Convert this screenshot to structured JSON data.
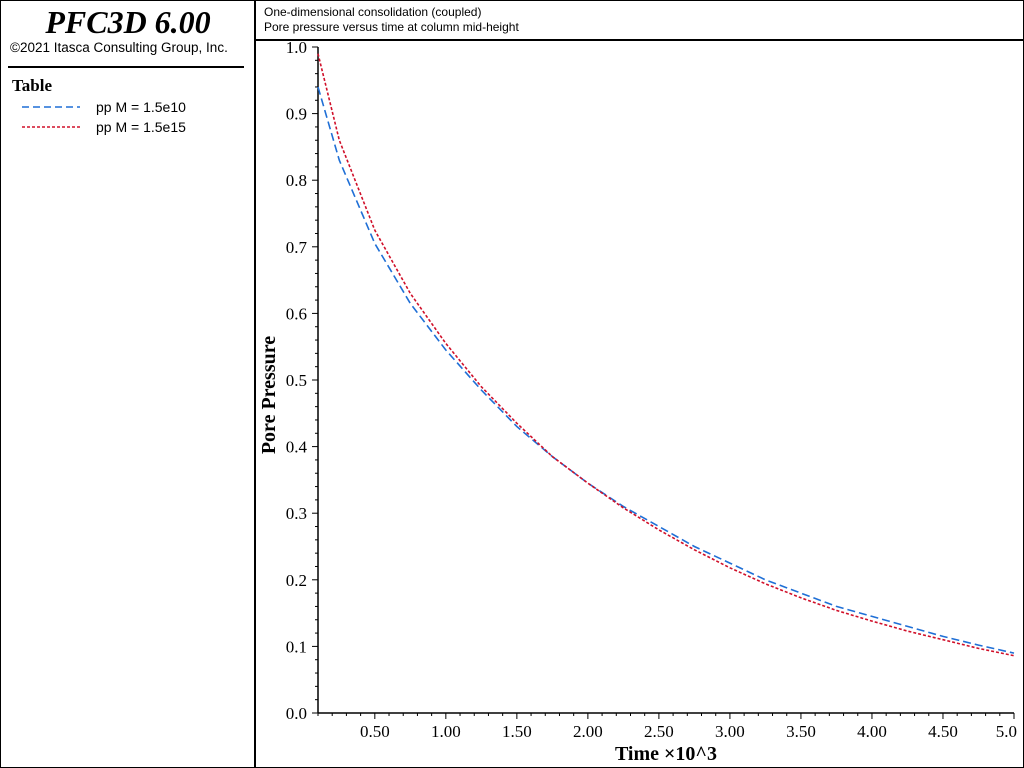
{
  "app": {
    "title": "PFC3D 6.00",
    "copyright": "©2021 Itasca Consulting Group, Inc."
  },
  "legend": {
    "title": "Table",
    "items": [
      {
        "label": "pp M = 1.5e10",
        "color": "#1f6fd6",
        "style": "dashed"
      },
      {
        "label": "pp M = 1.5e15",
        "color": "#d0102a",
        "style": "dotted"
      }
    ]
  },
  "header": {
    "line1": "One-dimensional consolidation (coupled)",
    "line2": "Pore pressure versus time at column mid-height"
  },
  "chart_data": {
    "type": "line",
    "xlabel": "Time ×10^3",
    "ylabel": "Pore Pressure",
    "xlim": [
      0.1,
      5.0
    ],
    "ylim": [
      0.0,
      1.0
    ],
    "x_ticks": [
      "0.50",
      "1.00",
      "1.50",
      "2.00",
      "2.50",
      "3.00",
      "3.50",
      "4.00",
      "4.50",
      "5.0"
    ],
    "y_ticks": [
      "0.0",
      "0.1",
      "0.2",
      "0.3",
      "0.4",
      "0.5",
      "0.6",
      "0.7",
      "0.8",
      "0.9",
      "1.0"
    ],
    "grid": false,
    "legend_position": "left-panel",
    "x": [
      0.1,
      0.25,
      0.5,
      0.75,
      1.0,
      1.25,
      1.5,
      1.75,
      2.0,
      2.25,
      2.5,
      2.75,
      3.0,
      3.25,
      3.5,
      3.75,
      4.0,
      4.25,
      4.5,
      4.75,
      5.0
    ],
    "series": [
      {
        "name": "pp M = 1.5e10",
        "color": "#1f6fd6",
        "values": [
          0.94,
          0.83,
          0.705,
          0.615,
          0.545,
          0.485,
          0.43,
          0.385,
          0.345,
          0.31,
          0.28,
          0.25,
          0.225,
          0.2,
          0.18,
          0.16,
          0.145,
          0.13,
          0.115,
          0.102,
          0.09
        ]
      },
      {
        "name": "pp M = 1.5e15",
        "color": "#d0102a",
        "values": [
          0.99,
          0.86,
          0.725,
          0.63,
          0.555,
          0.49,
          0.435,
          0.385,
          0.345,
          0.308,
          0.275,
          0.245,
          0.218,
          0.194,
          0.173,
          0.154,
          0.138,
          0.123,
          0.11,
          0.097,
          0.086
        ]
      }
    ]
  }
}
